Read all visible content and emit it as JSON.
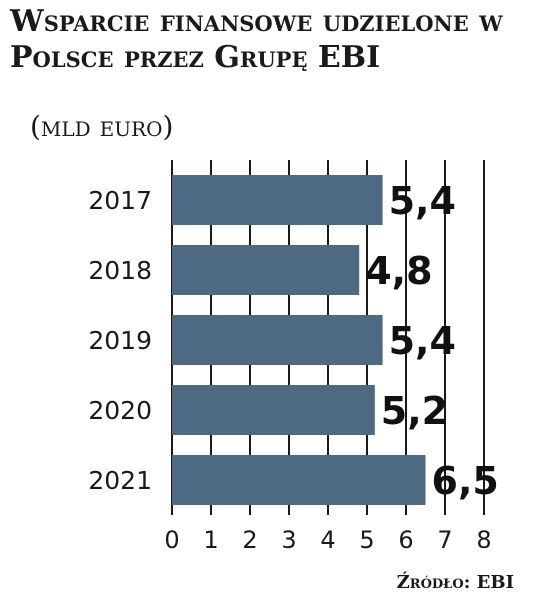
{
  "chart_data": {
    "type": "bar",
    "orientation": "horizontal",
    "title": "Wsparcie finansowe udzielone w Polsce przez Grupę EBI",
    "subtitle": "(mld euro)",
    "categories": [
      "2017",
      "2018",
      "2019",
      "2020",
      "2021"
    ],
    "values": [
      5.4,
      4.8,
      5.4,
      5.2,
      6.5
    ],
    "value_labels": [
      "5,4",
      "4,8",
      "5,4",
      "5,2",
      "6,5"
    ],
    "xlim": [
      0,
      8
    ],
    "x_ticks": [
      "0",
      "1",
      "2",
      "3",
      "4",
      "5",
      "6",
      "7",
      "8"
    ],
    "grid": true,
    "bar_color": "#4e6a82",
    "source": "Źródło: EBI"
  }
}
